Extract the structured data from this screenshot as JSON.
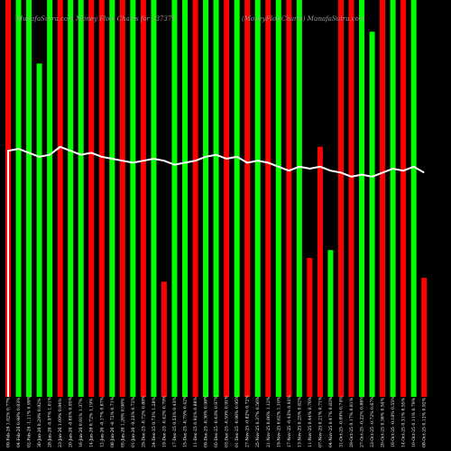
{
  "page": {
    "background": "#000000"
  },
  "chart_data": {
    "type": "bar",
    "title_left": "MunafaSutra.com Money Flow Charts for 537376",
    "title_right": "(MoneyFlowCharts) MunafaSutra.com",
    "colors": {
      "up": "#00ff00",
      "down": "#ff0000",
      "line": "#ffffff",
      "text": "#ffffff",
      "title": "#9a9a9a"
    },
    "ylim": [
      0,
      100
    ],
    "bars": [
      {
        "label": "09-Feb-26 1.02% 0.77%",
        "direction": "down",
        "value": 100
      },
      {
        "label": "04-Feb-26 0.98% 0.83%",
        "direction": "up",
        "value": 100
      },
      {
        "label": "02-Feb-26 -1.11% 0.99%",
        "direction": "up",
        "value": 100
      },
      {
        "label": "30-Jan-26 0.29% 0.82%",
        "direction": "up",
        "value": 84
      },
      {
        "label": "28-Jan-26 -0.97% 1.01%",
        "direction": "up",
        "value": 100
      },
      {
        "label": "23-Jan-26 1.09% 0.84%",
        "direction": "down",
        "value": 100
      },
      {
        "label": "20-Jan-26 -0.65% 0.95%",
        "direction": "up",
        "value": 100
      },
      {
        "label": "16-Jan-26 0.91% 1.37%",
        "direction": "up",
        "value": 100
      },
      {
        "label": "14-Jan-26 0.72% 1.19%",
        "direction": "down",
        "value": 100
      },
      {
        "label": "12-Jan-26 -0.17% 0.87%",
        "direction": "down",
        "value": 100
      },
      {
        "label": "08-Jan-26 -0.72% 0.71%",
        "direction": "up",
        "value": 100
      },
      {
        "label": "05-Jan-26 1.26% 0.98%",
        "direction": "down",
        "value": 100
      },
      {
        "label": "01-Jan-26 -0.23% 0.72%",
        "direction": "up",
        "value": 100
      },
      {
        "label": "29-Dec-25 -0.72% 0.88%",
        "direction": "down",
        "value": 100
      },
      {
        "label": "24-Dec-25 0.73% 1.28%",
        "direction": "up",
        "value": 100
      },
      {
        "label": "19-Dec-25 -0.42% 0.79%",
        "direction": "down",
        "value": 29
      },
      {
        "label": "17-Dec-25 0.53% 0.43%",
        "direction": "up",
        "value": 100
      },
      {
        "label": "15-Dec-25 -0.75% 0.42%",
        "direction": "up",
        "value": 100
      },
      {
        "label": "11-Dec-25 0.92% 0.88%",
        "direction": "down",
        "value": 100
      },
      {
        "label": "09-Dec-25 -0.36% 0.98%",
        "direction": "up",
        "value": 100
      },
      {
        "label": "05-Dec-25 -0.43% 0.97%",
        "direction": "up",
        "value": 100
      },
      {
        "label": "03-Dec-25 -0.59% 0.91%",
        "direction": "down",
        "value": 100
      },
      {
        "label": "01-Dec-25 -0.96% 0.95%",
        "direction": "up",
        "value": 100
      },
      {
        "label": "27-Nov-25 -0.82% 0.72%",
        "direction": "down",
        "value": 100
      },
      {
        "label": "25-Nov-25 0.37% 0.56%",
        "direction": "up",
        "value": 100
      },
      {
        "label": "21-Nov-25 0.86% 1.12%",
        "direction": "down",
        "value": 100
      },
      {
        "label": "19-Nov-25 0.62% 1.10%",
        "direction": "up",
        "value": 100
      },
      {
        "label": "17-Nov-25 -0.43% 0.93%",
        "direction": "down",
        "value": 100
      },
      {
        "label": "13-Nov-25 0.25% 0.82%",
        "direction": "up",
        "value": 100
      },
      {
        "label": "11-Nov-25 0.44% 0.76%",
        "direction": "down",
        "value": 35
      },
      {
        "label": "07-Nov-25 0.21% 0.71%",
        "direction": "down",
        "value": 63
      },
      {
        "label": "04-Nov-25 0.47% 0.83%",
        "direction": "up",
        "value": 37
      },
      {
        "label": "31-Oct-25 -0.09% 0.74%",
        "direction": "down",
        "value": 100
      },
      {
        "label": "29-Oct-25 0.17% 0.81%",
        "direction": "down",
        "value": 100
      },
      {
        "label": "27-Oct-25 -0.22% 0.86%",
        "direction": "up",
        "value": 100
      },
      {
        "label": "23-Oct-25 -0.72% 0.67%",
        "direction": "up",
        "value": 92
      },
      {
        "label": "20-Oct-25 0.36% 0.54%",
        "direction": "down",
        "value": 100
      },
      {
        "label": "16-Oct-25 -0.18% 0.55%",
        "direction": "up",
        "value": 100
      },
      {
        "label": "14-Oct-25 0.31% 0.55%",
        "direction": "down",
        "value": 100
      },
      {
        "label": "10-Oct-25 0.11% 0.79%",
        "direction": "up",
        "value": 100
      },
      {
        "label": "08-Oct-25 0.12% 0.92%",
        "direction": "down",
        "value": 30
      }
    ],
    "line": [
      62,
      62.5,
      61.5,
      60.5,
      61,
      63,
      62,
      61,
      61.5,
      60.5,
      60,
      59.5,
      59,
      59.5,
      60,
      59.5,
      58.5,
      59,
      59.5,
      60.5,
      61,
      60,
      60.5,
      59,
      59.5,
      59,
      58,
      57,
      58,
      57.5,
      58,
      57,
      56.5,
      55.5,
      56,
      55.5,
      56.5,
      57.5,
      57,
      58,
      56.5
    ]
  }
}
